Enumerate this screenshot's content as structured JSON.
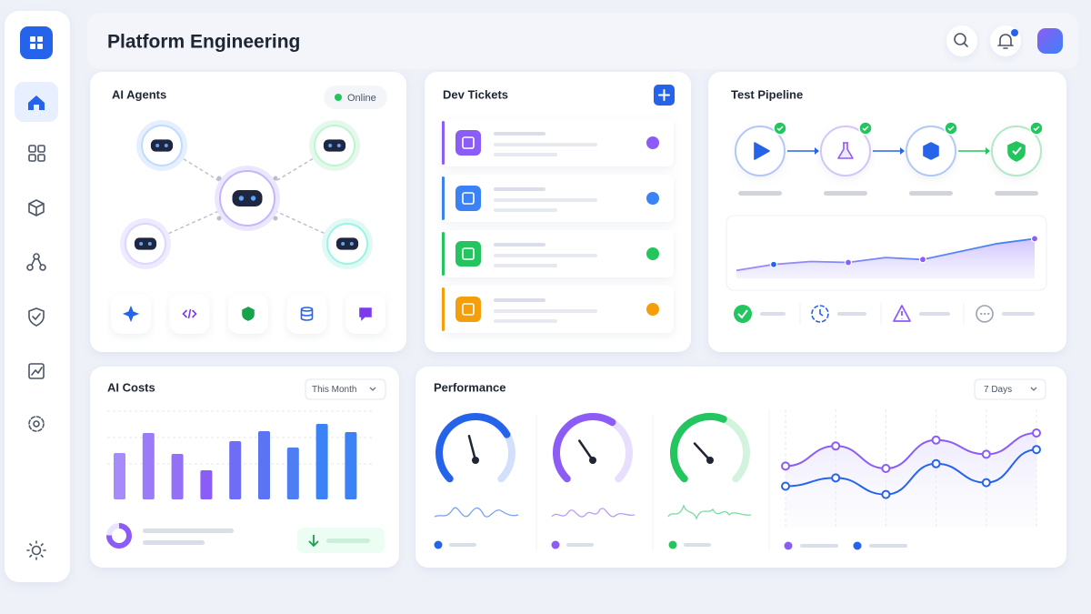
{
  "header": {
    "title": "Platform Engineering"
  },
  "ai_agents": {
    "title": "AI Agents",
    "status": "Online"
  },
  "dev_tickets": {
    "title": "Dev Tickets"
  },
  "test_pipeline": {
    "title": "Test Pipeline",
    "trend": {
      "values": [
        8,
        14,
        17,
        16,
        21,
        19,
        27,
        35,
        40
      ],
      "ylim": [
        0,
        55
      ],
      "color": "#8b5cf6"
    }
  },
  "ai_costs": {
    "title": "AI Costs",
    "period": "This Month",
    "bars": {
      "values": [
        51,
        73,
        50,
        32,
        64,
        75,
        57,
        83,
        74
      ],
      "ylim": [
        0,
        100
      ]
    }
  },
  "performance": {
    "title": "Performance",
    "period": "7 Days",
    "gauges": [
      {
        "value": 72,
        "color": "#2563eb"
      },
      {
        "value": 62,
        "color": "#8b5cf6"
      },
      {
        "value": 58,
        "color": "#22c55e"
      }
    ],
    "gauge_lim": [
      0,
      100
    ],
    "ylim": [
      0,
      100
    ],
    "series": [
      {
        "color": "#8b5cf6",
        "values": [
          52,
          69,
          50,
          74,
          62,
          80
        ]
      },
      {
        "color": "#2563eb",
        "values": [
          35,
          42,
          28,
          54,
          38,
          66
        ]
      }
    ]
  }
}
